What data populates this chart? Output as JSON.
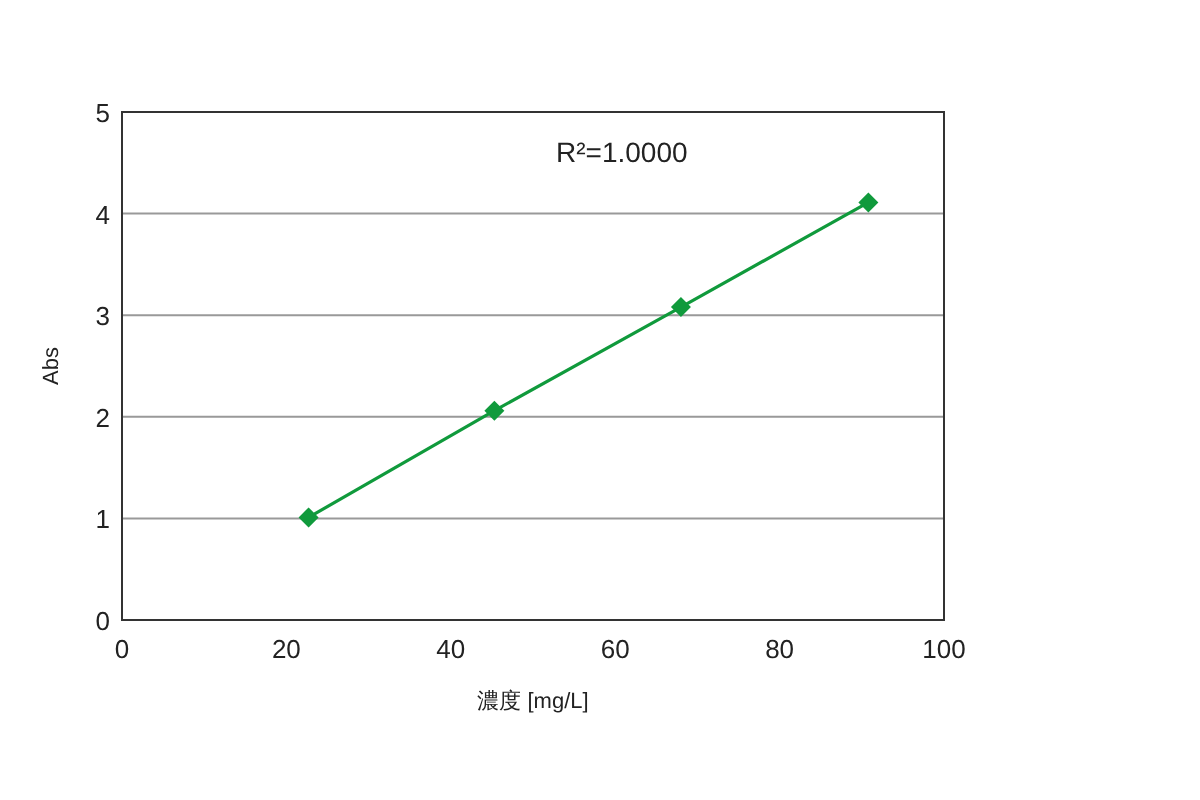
{
  "chart_data": {
    "type": "line",
    "xlabel": "濃度 [mg/L]",
    "ylabel": "Abs",
    "annotations": [
      "R²=1.0000"
    ],
    "series": [
      {
        "color": "#109a3c",
        "x": [
          22.7,
          45.3,
          68.0,
          90.8
        ],
        "values": [
          1.01,
          2.06,
          3.08,
          4.11
        ]
      }
    ],
    "xlim": [
      0,
      100
    ],
    "xticks": [
      0,
      20,
      40,
      60,
      80,
      100
    ],
    "ylim": [
      0,
      5
    ],
    "yticks": [
      0,
      1,
      2,
      3,
      4,
      5
    ],
    "grid": "y",
    "marker": "diamond",
    "line_style": "solid"
  }
}
